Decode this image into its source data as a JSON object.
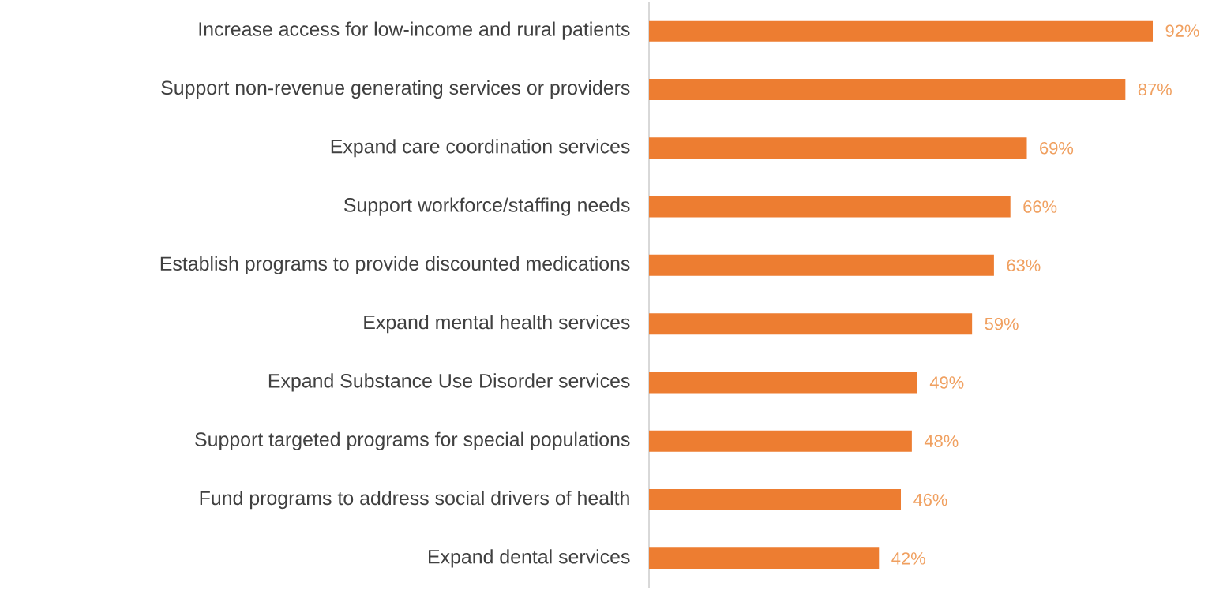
{
  "chart_data": {
    "type": "bar",
    "orientation": "horizontal",
    "categories": [
      "Increase access for low-income and rural patients",
      "Support non-revenue generating services or providers",
      "Expand care coordination services",
      "Support workforce/staffing needs",
      "Establish programs to provide discounted medications",
      "Expand mental health services",
      "Expand Substance Use Disorder services",
      "Support targeted programs for special populations",
      "Fund programs to address social drivers of health",
      "Expand dental services"
    ],
    "values": [
      92,
      87,
      69,
      66,
      63,
      59,
      49,
      48,
      46,
      42
    ],
    "value_labels": [
      "92%",
      "87%",
      "69%",
      "66%",
      "63%",
      "59%",
      "49%",
      "48%",
      "46%",
      "42%"
    ],
    "color": "#ed7d31",
    "tick_labels": "y"
  }
}
